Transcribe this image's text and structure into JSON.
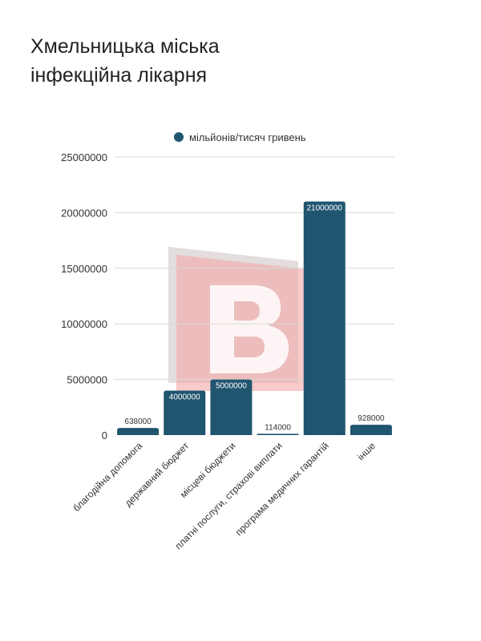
{
  "title": {
    "line1": "Хмельницька міська",
    "line2": "інфекційна лікарня"
  },
  "watermark": {
    "letter": "B",
    "color": "#f4a9a8"
  },
  "chart_data": {
    "type": "bar",
    "categories": [
      "благодійна допомога",
      "державний бюджет",
      "місцеві бюджети",
      "платні послуги, страхові виплати",
      "програма медичних гарантій",
      "інше"
    ],
    "series": [
      {
        "name": "мільйонів/тисяч гривень",
        "values": [
          638000,
          4000000,
          5000000,
          114000,
          21000000,
          928000
        ],
        "labels": [
          "638000",
          "4000000",
          "5000000",
          "114000",
          "21000000",
          "928000"
        ],
        "color": "#20556f"
      }
    ],
    "yticks": [
      "0",
      "5000000",
      "10000000",
      "15000000",
      "20000000",
      "25000000"
    ],
    "ylim": [
      0,
      25000000
    ],
    "legend_position": "top",
    "grid": true
  }
}
